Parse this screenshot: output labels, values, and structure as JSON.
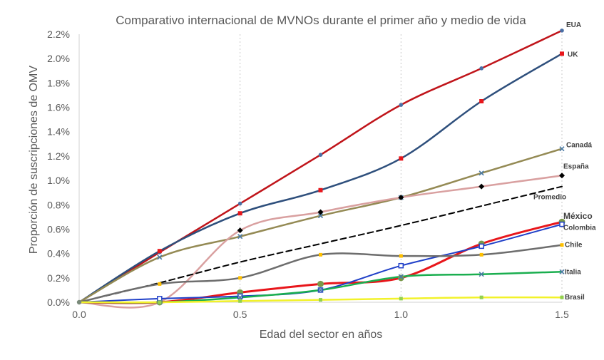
{
  "chart_data": {
    "type": "line",
    "title": "Comparativo internacional de MVNOs durante el primer año y medio de vida",
    "xlabel": "Edad del sector en años",
    "ylabel": "Proporción de suscripciones de OMV",
    "xlim": [
      0,
      1.5
    ],
    "ylim": [
      0,
      0.022
    ],
    "x_ticks": [
      "0.0",
      "0.5",
      "1.0",
      "1.5"
    ],
    "y_ticks": [
      "0.0%",
      "0.2%",
      "0.4%",
      "0.6%",
      "0.8%",
      "1.0%",
      "1.2%",
      "1.4%",
      "1.6%",
      "1.8%",
      "2.0%",
      "2.2%"
    ],
    "x_gridlines": "vertical dotted at 0.5, 1.0, 1.5",
    "legend": "labels at right end of each line",
    "x": [
      0,
      0.25,
      0.5,
      0.75,
      1.0,
      1.25,
      1.5
    ],
    "series": [
      {
        "name": "EUA",
        "color": "#c0141a",
        "marker": "circle",
        "marker_color": "#4a6fa5",
        "width": 2.5,
        "dashed": false,
        "label_weight": "bold",
        "values": [
          0,
          0.0041,
          0.0081,
          0.0121,
          0.0162,
          0.0192,
          0.0223
        ]
      },
      {
        "name": "UK",
        "color": "#2e4f7c",
        "marker": "square",
        "marker_color": "#e8161b",
        "width": 2.5,
        "dashed": false,
        "values": [
          0,
          0.0042,
          0.0073,
          0.0092,
          0.0118,
          0.0165,
          0.0204
        ]
      },
      {
        "name": "Canadá",
        "color": "#948a54",
        "marker": "x",
        "marker_color": "#4a7aa5",
        "width": 2.5,
        "dashed": false,
        "values": [
          0,
          0.0037,
          0.0054,
          0.0071,
          0.0086,
          0.0106,
          0.0126
        ]
      },
      {
        "name": "España",
        "color": "#d9a0a0",
        "marker": "diamond",
        "marker_color": "#000000",
        "width": 2.5,
        "dashed": false,
        "values": [
          0,
          0.0,
          0.0059,
          0.0074,
          0.0086,
          0.0095,
          0.0104
        ]
      },
      {
        "name": "Promedio",
        "color": "#000000",
        "marker": "none",
        "marker_color": "#000000",
        "width": 2,
        "dashed": true,
        "values": [
          0,
          0.0016,
          0.0033,
          0.0048,
          0.0063,
          0.0079,
          0.0095
        ]
      },
      {
        "name": "México",
        "color": "#e8161b",
        "marker": "circle-big",
        "marker_color": "#7a9a4a",
        "width": 3,
        "dashed": false,
        "values": [
          0,
          0.0,
          0.0008,
          0.0015,
          0.002,
          0.0048,
          0.0066
        ]
      },
      {
        "name": "Colombia",
        "color": "#1f3fc8",
        "marker": "square-open",
        "marker_color": "#1f3fc8",
        "width": 2,
        "dashed": false,
        "values": [
          0,
          0.0003,
          0.0005,
          0.001,
          0.003,
          0.0046,
          0.0064
        ]
      },
      {
        "name": "Chile",
        "color": "#6d6d6d",
        "marker": "square-small",
        "marker_color": "#ffc000",
        "width": 2.5,
        "dashed": false,
        "values": [
          0,
          0.0015,
          0.002,
          0.0039,
          0.0038,
          0.0039,
          0.0047
        ]
      },
      {
        "name": "Italia",
        "color": "#1aae4f",
        "marker": "x",
        "marker_color": "#4a7aa5",
        "width": 2.5,
        "dashed": false,
        "values": [
          0,
          0.0,
          0.0004,
          0.001,
          0.0021,
          0.0023,
          0.0025
        ]
      },
      {
        "name": "Brasil",
        "color": "#f2f22a",
        "marker": "square-small",
        "marker_color": "#92d050",
        "width": 2.5,
        "dashed": false,
        "values": [
          0,
          0.0,
          0.0001,
          0.0002,
          0.0003,
          0.0004,
          0.0004
        ]
      }
    ]
  }
}
